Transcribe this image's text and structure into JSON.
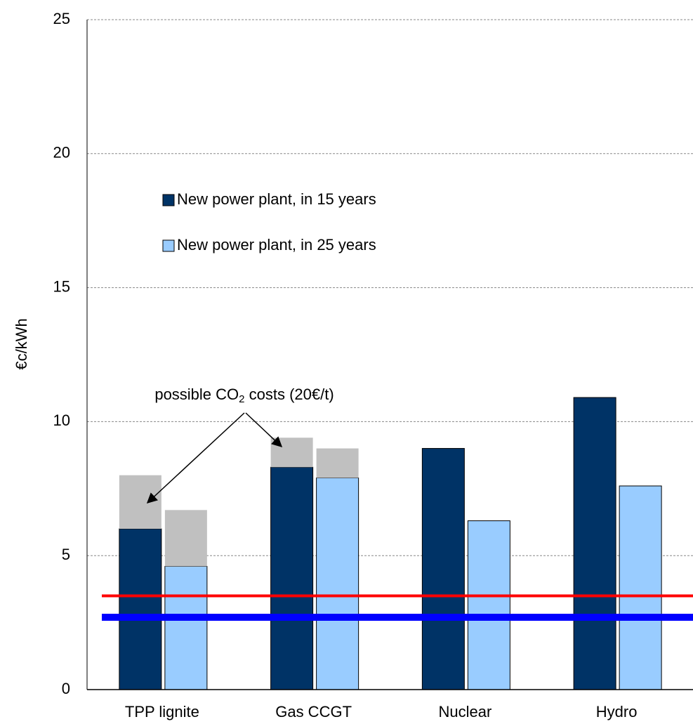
{
  "chart_data": {
    "type": "bar",
    "y_label": "€c/kWh",
    "categories": [
      "TPP lignite",
      "Gas CCGT",
      "Nuclear",
      "Hydro"
    ],
    "series": [
      {
        "name": "New power plant, in 15 years",
        "color": "#003366",
        "values": [
          6.0,
          8.3,
          9.0,
          10.9
        ],
        "co2": [
          2.0,
          1.1,
          null,
          null
        ]
      },
      {
        "name": "New power plant, in 25 years",
        "color": "#99ccff",
        "values": [
          4.6,
          7.9,
          6.3,
          7.6
        ],
        "co2": [
          2.1,
          1.1,
          null,
          null
        ]
      }
    ],
    "co2_color": "#c0c0c0",
    "annotation": {
      "text": "possible CO",
      "sub": "2",
      "after": " costs (20€/t)"
    },
    "hlines": [
      {
        "value": 3.5,
        "color": "#ff0000"
      },
      {
        "value": 2.7,
        "color": "#0000ff"
      }
    ],
    "ylim": [
      0,
      25
    ],
    "yticks": [
      0,
      5,
      10,
      15,
      20,
      25
    ],
    "grid": true
  }
}
